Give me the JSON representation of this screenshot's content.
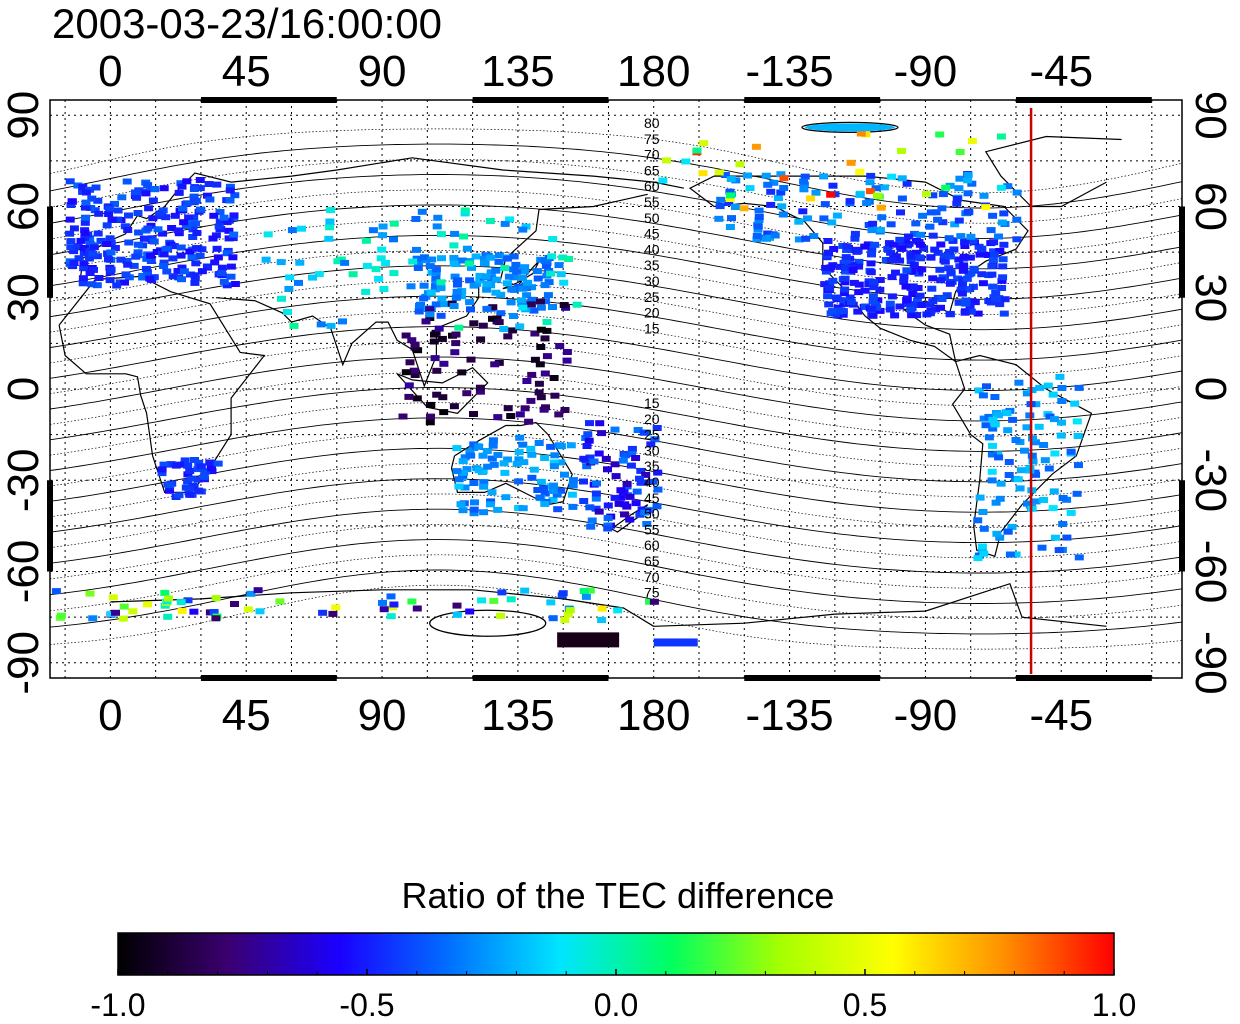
{
  "title": "2003-03-23/16:00:00",
  "map": {
    "lon_ticks": [
      "0",
      "45",
      "90",
      "135",
      "180",
      "-135",
      "-90",
      "-45"
    ],
    "lat_ticks": [
      "90",
      "60",
      "30",
      "0",
      "-30",
      "-60",
      "-90"
    ],
    "lon_range": [
      -20,
      355
    ],
    "lat_range": [
      -95,
      95
    ],
    "grid": true,
    "terminator_longitude": -55,
    "terminator_color": "#cc0000",
    "contour_labels_north": [
      "80",
      "75",
      "70",
      "65",
      "60",
      "55",
      "50",
      "45",
      "40",
      "35",
      "30",
      "25",
      "20",
      "15"
    ],
    "contour_labels_south": [
      "15",
      "20",
      "25",
      "30",
      "35",
      "40",
      "45",
      "50",
      "55",
      "60",
      "65",
      "70",
      "75"
    ]
  },
  "colorbar": {
    "title": "Ratio of the TEC difference",
    "range": [
      -1.0,
      1.0
    ],
    "ticks": [
      "-1.0",
      "-0.5",
      "0.0",
      "0.5",
      "1.0"
    ],
    "stops": [
      "#000000",
      "#3a0070",
      "#1b00ff",
      "#0070ff",
      "#00e5ff",
      "#00ff60",
      "#a8ff00",
      "#ffff00",
      "#ff9000",
      "#ff0000"
    ]
  }
}
